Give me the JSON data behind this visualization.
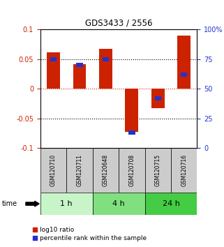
{
  "title": "GDS3433 / 2556",
  "samples": [
    "GSM120710",
    "GSM120711",
    "GSM120648",
    "GSM120708",
    "GSM120715",
    "GSM120716"
  ],
  "log10_ratio": [
    0.062,
    0.042,
    0.068,
    -0.073,
    -0.032,
    0.09
  ],
  "percentile_rank": [
    0.75,
    0.7,
    0.75,
    0.13,
    0.42,
    0.62
  ],
  "groups": [
    {
      "label": "1 h",
      "start": 0,
      "end": 2,
      "color": "#c8f5c8"
    },
    {
      "label": "4 h",
      "start": 2,
      "end": 4,
      "color": "#80e080"
    },
    {
      "label": "24 h",
      "start": 4,
      "end": 6,
      "color": "#44cc44"
    }
  ],
  "ylim": [
    -0.1,
    0.1
  ],
  "yticks_left": [
    -0.1,
    -0.05,
    0,
    0.05,
    0.1
  ],
  "yticks_right_vals": [
    -0.1,
    -0.05,
    0,
    0.05,
    0.1
  ],
  "yticks_right_labels": [
    "0",
    "25",
    "50",
    "75",
    "100%"
  ],
  "bar_color_red": "#cc2200",
  "bar_color_blue": "#2233cc",
  "label_red": "log10 ratio",
  "label_blue": "percentile rank within the sample",
  "time_label": "time",
  "bar_width": 0.5,
  "blue_bar_height": 0.007,
  "blue_bar_width": 0.25,
  "sample_bg": "#cccccc",
  "title_fontsize": 8.5,
  "tick_fontsize": 7,
  "legend_fontsize": 6.5,
  "sample_fontsize": 5.5,
  "group_fontsize": 8
}
